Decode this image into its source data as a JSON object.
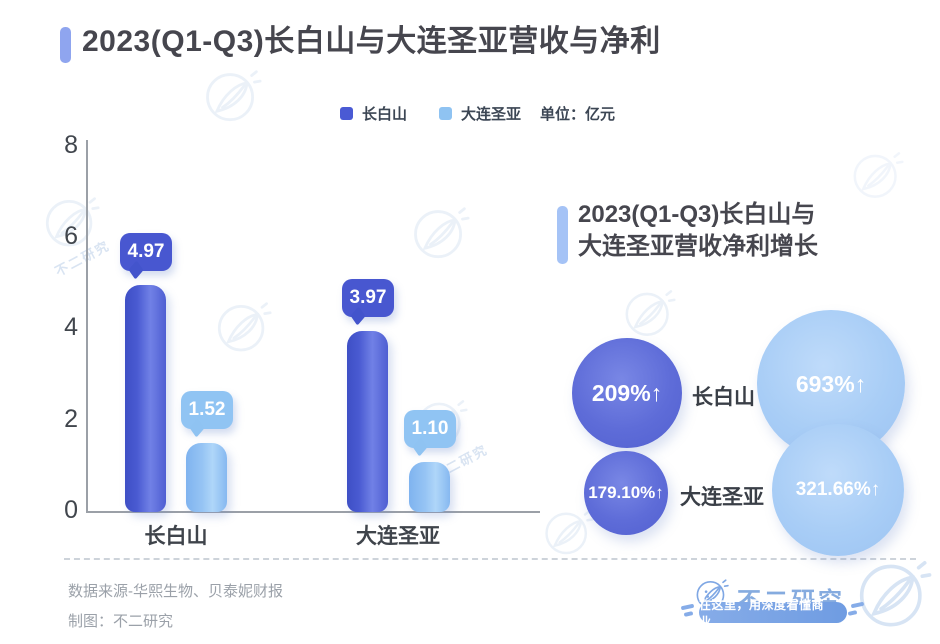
{
  "header": {
    "title": "2023(Q1-Q3)长白山与大连圣亚营收与净利",
    "accent_color": "#8FA5EF"
  },
  "legend": {
    "items": [
      {
        "label": "长白山",
        "color": "#4A5AD4"
      },
      {
        "label": "大连圣亚",
        "color": "#8FC3F2"
      }
    ],
    "unit_label": "单位：亿元"
  },
  "chart_data": {
    "type": "bar",
    "title": "2023(Q1-Q3)长白山与大连圣亚营收与净利",
    "unit": "亿元",
    "categories": [
      "长白山",
      "大连圣亚"
    ],
    "series": [
      {
        "name": "长白山",
        "color": "#4A5AD4",
        "values": [
          4.97,
          3.97
        ],
        "value_labels": [
          "4.97",
          "3.97"
        ]
      },
      {
        "name": "大连圣亚",
        "color": "#8FC3F2",
        "values": [
          1.52,
          1.1
        ],
        "value_labels": [
          "1.52",
          "1.10"
        ]
      }
    ],
    "ylim": [
      0,
      8
    ],
    "ytick_labels": [
      "8",
      "6",
      "4",
      "2",
      "0"
    ],
    "grid": false,
    "legend_position": "top"
  },
  "growth_panel": {
    "title_line1": "2023(Q1-Q3)长白山与",
    "title_line2": "大连圣亚营收净利增长",
    "accent_color": "#A5C3F6",
    "bubbles": [
      {
        "value": "209%↑",
        "company": "长白山",
        "color": "#5B6AD8",
        "diameter": 110
      },
      {
        "value": "693%↑",
        "color": "#A6CBF5",
        "diameter": 148
      },
      {
        "value": "179.10%↑",
        "company": "大连圣亚",
        "color": "#5B6AD8",
        "diameter": 84
      },
      {
        "value": "321.66%↑",
        "color": "#A6CBF5",
        "diameter": 132
      }
    ]
  },
  "footer": {
    "source": "数据来源-华熙生物、贝泰妮财报",
    "credit": "制图：不二研究"
  },
  "brand": {
    "name": "不二研究",
    "tagline": "在这里，用深度看懂商业。",
    "color": "#7FA7E4"
  }
}
